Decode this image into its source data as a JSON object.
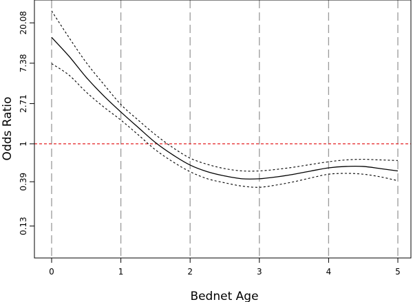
{
  "chart_data": {
    "type": "line",
    "title": "",
    "xlabel": "Bednet Age",
    "ylabel": "Odds Ratio",
    "xlim": [
      0,
      5
    ],
    "x_ticks": [
      0,
      1,
      2,
      3,
      4,
      5
    ],
    "x_tick_labels": [
      "0",
      "1",
      "2",
      "3",
      "4",
      "5"
    ],
    "ylim": [
      0.06,
      30
    ],
    "y_scale": "log",
    "y_ticks": [
      0.13,
      0.39,
      1,
      2.71,
      7.38,
      20.08
    ],
    "y_tick_labels": [
      "0.13",
      "0.39",
      "1",
      "2.71",
      "7.38",
      "20.08"
    ],
    "vertical_gridlines_at": [
      0,
      1,
      2,
      3,
      4,
      5
    ],
    "reference_line": {
      "y": 1,
      "color": "#e41a1c",
      "style": "dashed"
    },
    "x": [
      0,
      0.25,
      0.5,
      0.75,
      1,
      1.25,
      1.5,
      1.75,
      2,
      2.25,
      2.5,
      2.75,
      3,
      3.25,
      3.5,
      3.75,
      4,
      4.25,
      4.5,
      4.75,
      5
    ],
    "series": [
      {
        "role": "estimate",
        "line_style": "solid",
        "values": [
          14.0,
          8.8,
          5.2,
          3.3,
          2.2,
          1.5,
          1.03,
          0.76,
          0.59,
          0.5,
          0.45,
          0.42,
          0.42,
          0.44,
          0.47,
          0.51,
          0.55,
          0.57,
          0.57,
          0.54,
          0.51
        ]
      },
      {
        "role": "upper",
        "line_style": "dashed",
        "values": [
          27.0,
          14.0,
          7.5,
          4.4,
          2.65,
          1.8,
          1.25,
          0.91,
          0.7,
          0.6,
          0.54,
          0.51,
          0.51,
          0.53,
          0.56,
          0.6,
          0.64,
          0.67,
          0.68,
          0.67,
          0.66
        ]
      },
      {
        "role": "lower",
        "line_style": "dashed",
        "values": [
          7.3,
          5.5,
          3.6,
          2.5,
          1.8,
          1.25,
          0.86,
          0.64,
          0.5,
          0.42,
          0.38,
          0.35,
          0.34,
          0.36,
          0.39,
          0.43,
          0.47,
          0.48,
          0.47,
          0.44,
          0.4
        ]
      }
    ]
  },
  "colors": {
    "frame": "#000000",
    "grid": "#999999",
    "reference": "#e41a1c",
    "lines": "#000000"
  }
}
